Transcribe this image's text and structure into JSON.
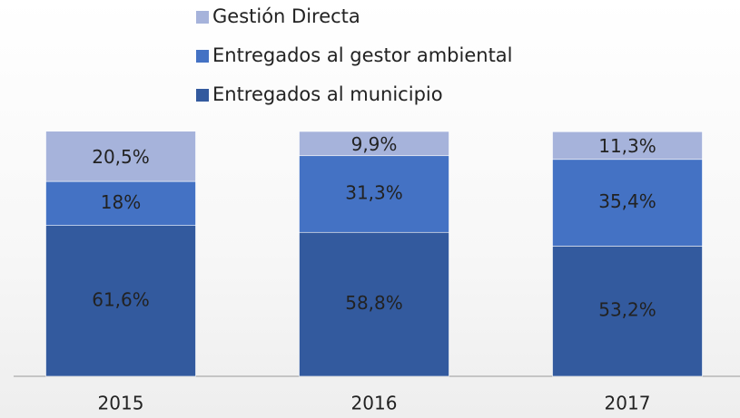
{
  "chart_data": {
    "type": "stacked_bar",
    "categories": [
      "2015",
      "2016",
      "2017"
    ],
    "series": [
      {
        "name": "Entregados al municipio",
        "color": "#335a9e",
        "values": [
          61.6,
          58.8,
          53.2
        ],
        "value_labels": [
          "61,6%",
          "58,8%",
          "53,2%"
        ]
      },
      {
        "name": "Entregados al gestor ambiental",
        "color": "#4472c4",
        "values": [
          18,
          31.3,
          35.4
        ],
        "value_labels": [
          "18%",
          "31,3%",
          "35,4%"
        ]
      },
      {
        "name": "Gestión Directa",
        "color": "#a6b3db",
        "values": [
          20.5,
          9.9,
          11.3
        ],
        "value_labels": [
          "20,5%",
          "9,9%",
          "11,3%"
        ]
      }
    ]
  }
}
